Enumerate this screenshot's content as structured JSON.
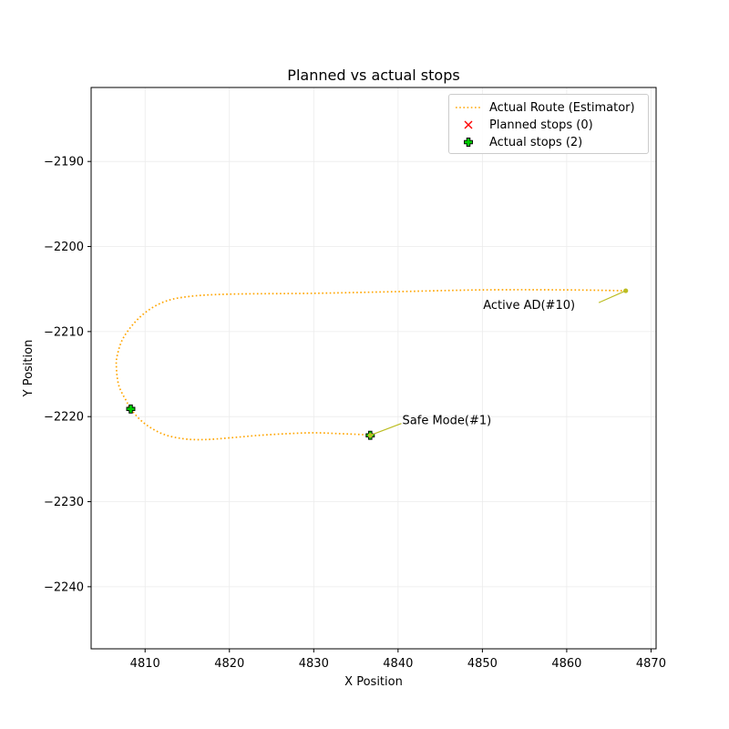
{
  "chart_data": {
    "type": "scatter",
    "title": "Planned vs actual stops",
    "xlabel": "X Position",
    "ylabel": "Y Position",
    "xlim": [
      4803.6,
      4870.6
    ],
    "ylim": [
      -2247.3,
      -2181.3
    ],
    "xticks": [
      4810,
      4820,
      4830,
      4840,
      4850,
      4860,
      4870
    ],
    "yticks": [
      -2190,
      -2200,
      -2210,
      -2220,
      -2230,
      -2240
    ],
    "xtick_labels": [
      "4810",
      "4820",
      "4830",
      "4840",
      "4850",
      "4860",
      "4870"
    ],
    "ytick_labels": [
      "−2190",
      "−2200",
      "−2210",
      "−2220",
      "−2230",
      "−2240"
    ],
    "grid": true,
    "legend_position": "top-right",
    "series": [
      {
        "name": "Actual Route (Estimator)",
        "kind": "line",
        "style": "dotted",
        "color": "#ffa500",
        "points": [
          [
            4867.0,
            -2205.2
          ],
          [
            4860.0,
            -2205.1
          ],
          [
            4850.0,
            -2205.1
          ],
          [
            4840.0,
            -2205.3
          ],
          [
            4830.0,
            -2205.5
          ],
          [
            4820.0,
            -2205.6
          ],
          [
            4815.0,
            -2205.9
          ],
          [
            4812.0,
            -2206.6
          ],
          [
            4809.5,
            -2208.2
          ],
          [
            4807.5,
            -2210.6
          ],
          [
            4806.7,
            -2212.8
          ],
          [
            4806.6,
            -2214.3
          ],
          [
            4806.9,
            -2216.4
          ],
          [
            4807.8,
            -2218.2
          ],
          [
            4808.3,
            -2219.1
          ],
          [
            4809.8,
            -2220.7
          ],
          [
            4812.0,
            -2222.0
          ],
          [
            4814.5,
            -2222.6
          ],
          [
            4817.0,
            -2222.7
          ],
          [
            4820.0,
            -2222.5
          ],
          [
            4823.5,
            -2222.2
          ],
          [
            4827.0,
            -2222.0
          ],
          [
            4830.0,
            -2221.9
          ],
          [
            4833.0,
            -2222.0
          ],
          [
            4835.5,
            -2222.1
          ],
          [
            4836.7,
            -2222.2
          ]
        ]
      },
      {
        "name": "Planned stops (0)",
        "kind": "scatter",
        "marker": "x",
        "color": "#ff0000",
        "points": []
      },
      {
        "name": "Actual stops (2)",
        "kind": "scatter",
        "marker": "plus",
        "color": "#00cc00",
        "edge_color": "#000000",
        "points": [
          [
            4836.7,
            -2222.2
          ],
          [
            4808.3,
            -2219.1
          ]
        ]
      }
    ],
    "annotations": [
      {
        "text": "Safe Mode(#1)",
        "point": [
          4836.7,
          -2222.2
        ],
        "text_at": [
          4840.4,
          -2220.8
        ],
        "anchor": "start",
        "color": "#bcbd22"
      },
      {
        "text": "Active AD(#10)",
        "point": [
          4867.0,
          -2205.2
        ],
        "text_at": [
          4863.8,
          -2206.6
        ],
        "anchor": "end",
        "color": "#bcbd22"
      }
    ]
  }
}
